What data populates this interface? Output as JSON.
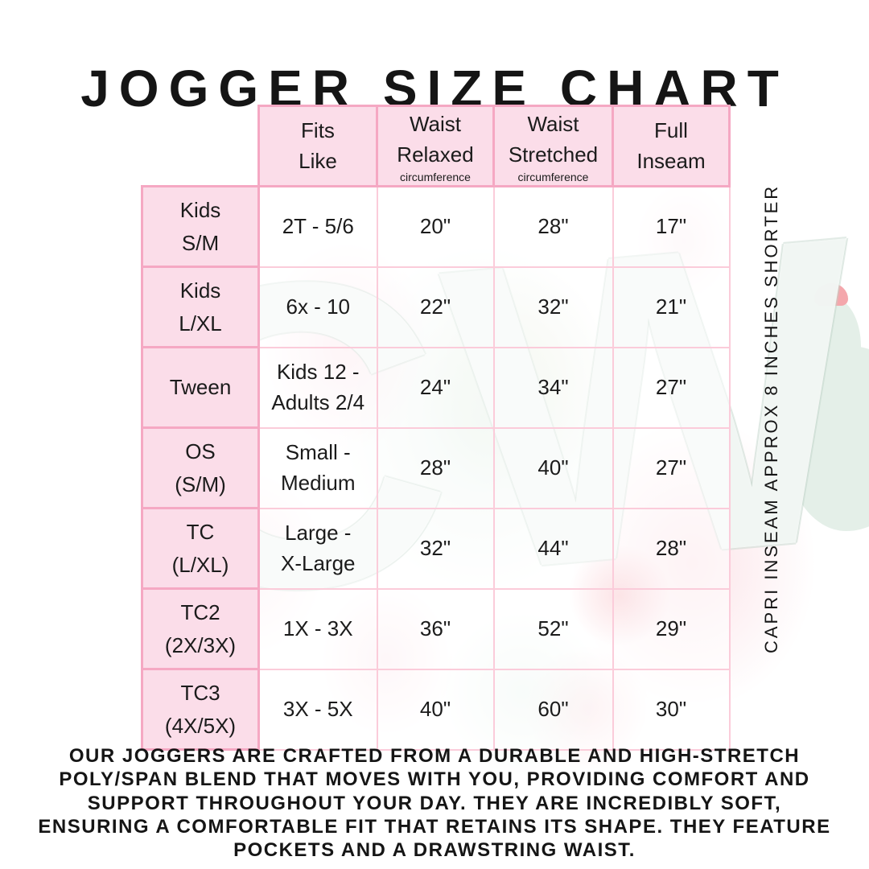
{
  "title": "JOGGER SIZE CHART",
  "watermark_text": "CW",
  "side_note": "CAPRI INSEAM APPROX 8 INCHES SHORTER",
  "table": {
    "columns": [
      {
        "title": "Fits\nLike",
        "note": ""
      },
      {
        "title": "Waist\nRelaxed",
        "note": "circumference"
      },
      {
        "title": "Waist\nStretched",
        "note": "circumference"
      },
      {
        "title": "Full\nInseam",
        "note": ""
      }
    ],
    "rows": [
      {
        "label": "Kids\nS/M",
        "cells": [
          "2T - 5/6",
          "20\"",
          "28\"",
          "17\""
        ]
      },
      {
        "label": "Kids\nL/XL",
        "cells": [
          "6x - 10",
          "22\"",
          "32\"",
          "21\""
        ]
      },
      {
        "label": "Tween",
        "cells": [
          "Kids 12 -\nAdults 2/4",
          "24\"",
          "34\"",
          "27\""
        ]
      },
      {
        "label": "OS\n(S/M)",
        "cells": [
          "Small -\nMedium",
          "28\"",
          "40\"",
          "27\""
        ]
      },
      {
        "label": "TC\n(L/XL)",
        "cells": [
          "Large -\nX-Large",
          "32\"",
          "44\"",
          "28\""
        ]
      },
      {
        "label": "TC2\n(2X/3X)",
        "cells": [
          "1X - 3X",
          "36\"",
          "52\"",
          "29\""
        ]
      },
      {
        "label": "TC3\n(4X/5X)",
        "cells": [
          "3X - 5X",
          "40\"",
          "60\"",
          "30\""
        ]
      }
    ]
  },
  "description": "OUR JOGGERS ARE CRAFTED FROM A DURABLE AND HIGH-STRETCH\nPOLY/SPAN BLEND THAT MOVES WITH YOU, PROVIDING COMFORT AND\nSUPPORT THROUGHOUT YOUR DAY. THEY ARE INCREDIBLY SOFT,\nENSURING A COMFORTABLE FIT THAT RETAINS ITS SHAPE. THEY FEATURE\nPOCKETS AND A DRAWSTRING WAIST.",
  "colors": {
    "border_strong": "#f5a8c3",
    "border_light": "#fbccda",
    "cell_fill": "#fbdde9",
    "text": "#1b1b1b",
    "watermark_mint": "#e4efe8",
    "flower_pink": "#f4a7ac"
  }
}
